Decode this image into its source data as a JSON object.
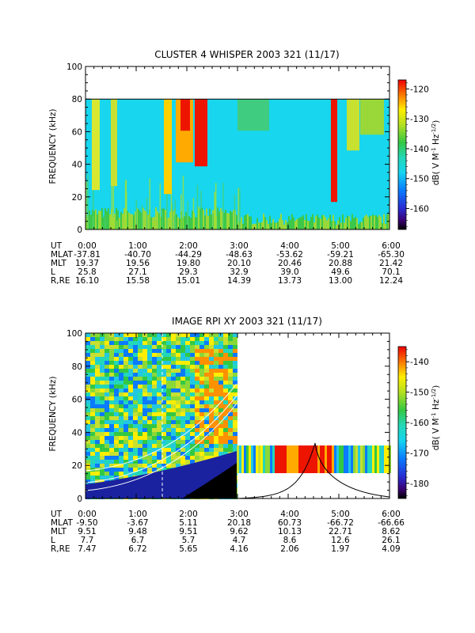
{
  "chart_data": [
    {
      "type": "heatmap",
      "title": "CLUSTER 4 WHISPER 2003 321 (11/17)",
      "ylabel": "FREQUENCY (kHz)",
      "ylim": [
        0,
        100
      ],
      "yticks": [
        "0",
        "20",
        "40",
        "60",
        "80",
        "100"
      ],
      "data_ceiling_khz": 80,
      "colorbar": {
        "label": "dB( V M",
        "label_sup1": "-1",
        "label_mid": " Hz",
        "label_sup2": "-1/2",
        "label_end": ")",
        "range": [
          -167,
          -117
        ],
        "ticks": [
          "-120",
          "-130",
          "-140",
          "-150",
          "-160"
        ]
      },
      "x_labels": [
        "0:00",
        "1:00",
        "2:00",
        "3:00",
        "4:00",
        "5:00",
        "6:00"
      ],
      "ephemeris": [
        {
          "name": "UT",
          "values": [
            "0:00",
            "1:00",
            "2:00",
            "3:00",
            "4:00",
            "5:00",
            "6:00"
          ]
        },
        {
          "name": "MLAT",
          "values": [
            "-37.81",
            "-40.70",
            "-44.29",
            "-48.63",
            "-53.62",
            "-59.21",
            "-65.30"
          ]
        },
        {
          "name": "MLT",
          "values": [
            "19.37",
            "19.56",
            "19.80",
            "20.10",
            "20.46",
            "20.88",
            "21.42"
          ]
        },
        {
          "name": "L",
          "values": [
            "25.8",
            "27.1",
            "29.3",
            "32.9",
            "39.0",
            "49.6",
            "70.1"
          ]
        },
        {
          "name": "R,RE",
          "values": [
            "16.10",
            "15.58",
            "15.01",
            "14.39",
            "13.73",
            "13.00",
            "12.24"
          ]
        }
      ]
    },
    {
      "type": "heatmap",
      "title": "IMAGE RPI XY 2003 321 (11/17)",
      "ylabel": "FREQUENCY (kHz)",
      "ylim": [
        0,
        100
      ],
      "yticks": [
        "0",
        "20",
        "40",
        "60",
        "80",
        "100"
      ],
      "colorbar": {
        "label": "dB( V M",
        "label_sup1": "-1",
        "label_mid": " Hz",
        "label_sup2": "-1/2",
        "label_end": ")",
        "range": [
          -185,
          -135
        ],
        "ticks": [
          "-140",
          "-150",
          "-160",
          "-170",
          "-180"
        ]
      },
      "x_labels": [
        "0:00",
        "1:00",
        "2:00",
        "3:00",
        "4:00",
        "5:00",
        "6:00"
      ],
      "ephemeris": [
        {
          "name": "UT",
          "values": [
            "0:00",
            "1:00",
            "2:00",
            "3:00",
            "4:00",
            "5:00",
            "6:00"
          ]
        },
        {
          "name": "MLAT",
          "values": [
            "-9.50",
            "-3.67",
            "5.11",
            "20.18",
            "60.73",
            "-66.72",
            "-66.66"
          ]
        },
        {
          "name": "MLT",
          "values": [
            "9.51",
            "9.48",
            "9.51",
            "9.62",
            "10.13",
            "22.71",
            "8.62"
          ]
        },
        {
          "name": "L",
          "values": [
            "7.7",
            "6.7",
            "5.7",
            "4.7",
            "8.6",
            "12.6",
            "26.1"
          ]
        },
        {
          "name": "R,RE",
          "values": [
            "7.47",
            "6.72",
            "5.65",
            "4.16",
            "2.06",
            "1.97",
            "4.09"
          ]
        }
      ]
    }
  ]
}
